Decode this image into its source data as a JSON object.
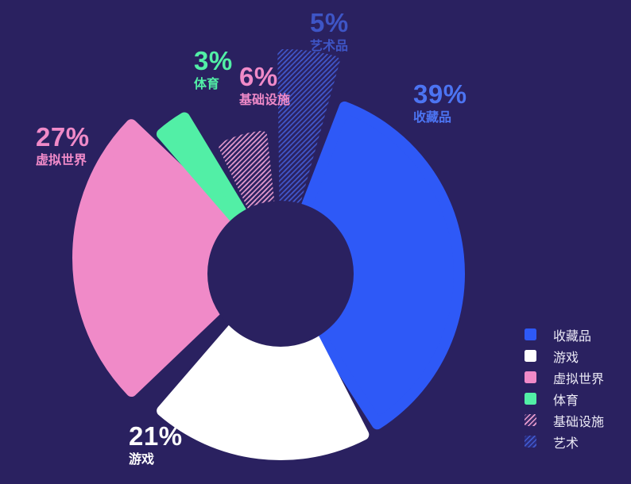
{
  "chart_data": {
    "type": "pie",
    "donut": true,
    "title": "",
    "legend_position": "right",
    "categories": [
      "收藏品",
      "游戏",
      "虚拟世界",
      "体育",
      "基础设施",
      "艺术"
    ],
    "values": [
      39,
      21,
      27,
      3,
      6,
      5
    ],
    "units": "%",
    "start_angle_deg": 21,
    "pad_angle_deg": 5.5,
    "slices": [
      {
        "key": "collectibles",
        "label": "收藏品",
        "value": 39,
        "color": "#2e59f7",
        "hatch": false,
        "pattern": null
      },
      {
        "key": "games",
        "label": "游戏",
        "value": 21,
        "color": "#ffffff",
        "hatch": false,
        "pattern": null
      },
      {
        "key": "virtual-worlds",
        "label": "虚拟世界",
        "value": 27,
        "color": "#f08ac8",
        "hatch": false,
        "pattern": null
      },
      {
        "key": "sports",
        "label": "体育",
        "value": 3,
        "color": "#52efa6",
        "hatch": false,
        "pattern": null
      },
      {
        "key": "infrastructure",
        "label": "基础设施",
        "value": 6,
        "color": "#e79cce",
        "hatch": true,
        "pattern": "hatch-pink"
      },
      {
        "key": "art",
        "label": "艺术",
        "value": 5,
        "color": "#4158cc",
        "hatch": true,
        "pattern": "hatch-blue"
      }
    ]
  },
  "callouts": {
    "art": {
      "percent": "5%",
      "label": "艺术品"
    },
    "collectibles": {
      "percent": "39%",
      "label": "收藏品"
    },
    "sports": {
      "percent": "3%",
      "label": "体育"
    },
    "infrastructure": {
      "percent": "6%",
      "label": "基础设施"
    },
    "virtual_worlds": {
      "percent": "27%",
      "label": "虚拟世界"
    },
    "games": {
      "percent": "21%",
      "label": "游戏"
    }
  },
  "legend": {
    "items": [
      {
        "label": "收藏品",
        "swatch": "blue"
      },
      {
        "label": "游戏",
        "swatch": "white"
      },
      {
        "label": "虚拟世界",
        "swatch": "pink"
      },
      {
        "label": "体育",
        "swatch": "green"
      },
      {
        "label": "基础设施",
        "swatch": "hatch-pink"
      },
      {
        "label": "艺术",
        "swatch": "hatch-blue"
      }
    ]
  },
  "colors": {
    "background": "#2a2160",
    "collectibles_blue": "#2e59f7",
    "games_white": "#ffffff",
    "virtual_pink": "#f08ac8",
    "sports_green": "#52efa6",
    "hatch_pink_line": "#e79cce",
    "hatch_blue_line": "#4158cc",
    "label_bright_blue": "#4c74f2",
    "label_muted_blue": "#3e55c6",
    "legend_text": "#eceaf6"
  }
}
